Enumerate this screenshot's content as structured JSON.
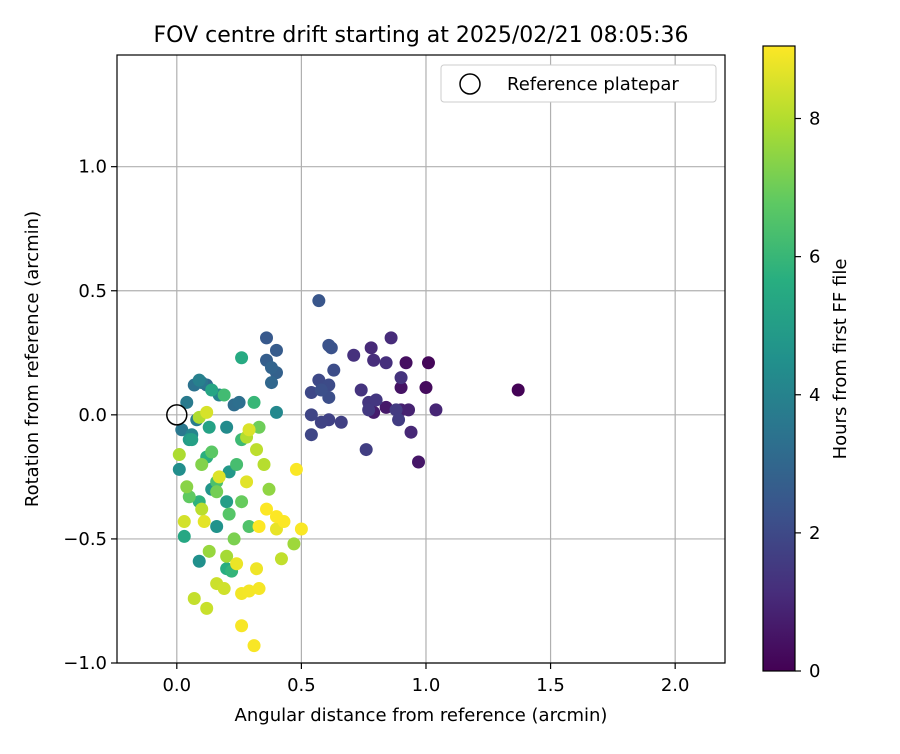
{
  "chart_data": {
    "type": "scatter",
    "title": "FOV centre drift starting at 2025/02/21 08:05:36",
    "xlabel": "Angular distance from reference (arcmin)",
    "ylabel": "Rotation from reference (arcmin)",
    "xlim": [
      -0.24,
      2.2
    ],
    "ylim": [
      -1.0,
      1.45
    ],
    "x_ticks": [
      0.0,
      0.5,
      1.0,
      1.5,
      2.0
    ],
    "x_tick_labels": [
      "0.0",
      "0.5",
      "1.0",
      "1.5",
      "2.0"
    ],
    "y_ticks": [
      -1.0,
      -0.5,
      0.0,
      0.5,
      1.0
    ],
    "y_tick_labels": [
      "−1.0",
      "−0.5",
      "0.0",
      "0.5",
      "1.0"
    ],
    "grid": true,
    "legend": {
      "position": "top-right",
      "entries": [
        "Reference platepar"
      ]
    },
    "reference_point": {
      "x": 0.0,
      "y": 0.0
    },
    "colorbar": {
      "label": "Hours from first FF file",
      "colormap": "viridis",
      "range": [
        0,
        9.05
      ],
      "ticks": [
        0,
        2,
        4,
        6,
        8
      ],
      "tick_labels": [
        "0",
        "2",
        "4",
        "6",
        "8"
      ]
    },
    "points": [
      {
        "x": 1.37,
        "y": 0.1,
        "t": 0.05
      },
      {
        "x": 1.01,
        "y": 0.21,
        "t": 0.15
      },
      {
        "x": 1.0,
        "y": 0.11,
        "t": 0.25
      },
      {
        "x": 0.92,
        "y": 0.21,
        "t": 0.35
      },
      {
        "x": 0.9,
        "y": 0.11,
        "t": 0.45
      },
      {
        "x": 0.97,
        "y": -0.19,
        "t": 0.55
      },
      {
        "x": 0.84,
        "y": 0.03,
        "t": 0.6
      },
      {
        "x": 0.79,
        "y": 0.01,
        "t": 0.7
      },
      {
        "x": 0.9,
        "y": 0.02,
        "t": 0.8
      },
      {
        "x": 0.93,
        "y": 0.02,
        "t": 0.85
      },
      {
        "x": 1.04,
        "y": 0.02,
        "t": 0.95
      },
      {
        "x": 0.94,
        "y": -0.07,
        "t": 1.0
      },
      {
        "x": 0.78,
        "y": 0.27,
        "t": 1.05
      },
      {
        "x": 0.86,
        "y": 0.31,
        "t": 1.1
      },
      {
        "x": 0.79,
        "y": 0.22,
        "t": 1.15
      },
      {
        "x": 0.84,
        "y": 0.21,
        "t": 1.2
      },
      {
        "x": 0.71,
        "y": 0.24,
        "t": 1.25
      },
      {
        "x": 0.9,
        "y": 0.15,
        "t": 1.3
      },
      {
        "x": 0.74,
        "y": 0.1,
        "t": 1.35
      },
      {
        "x": 0.77,
        "y": 0.05,
        "t": 1.4
      },
      {
        "x": 0.8,
        "y": 0.06,
        "t": 1.45
      },
      {
        "x": 0.77,
        "y": 0.02,
        "t": 1.5
      },
      {
        "x": 0.88,
        "y": 0.02,
        "t": 1.55
      },
      {
        "x": 0.89,
        "y": -0.02,
        "t": 1.6
      },
      {
        "x": 0.76,
        "y": -0.14,
        "t": 1.65
      },
      {
        "x": 0.66,
        "y": -0.03,
        "t": 1.7
      },
      {
        "x": 0.61,
        "y": -0.02,
        "t": 1.75
      },
      {
        "x": 0.58,
        "y": -0.03,
        "t": 1.8
      },
      {
        "x": 0.54,
        "y": 0.0,
        "t": 1.85
      },
      {
        "x": 0.54,
        "y": -0.08,
        "t": 1.9
      },
      {
        "x": 0.54,
        "y": 0.09,
        "t": 1.95
      },
      {
        "x": 0.57,
        "y": 0.14,
        "t": 2.0
      },
      {
        "x": 0.61,
        "y": 0.12,
        "t": 2.05
      },
      {
        "x": 0.63,
        "y": 0.18,
        "t": 2.1
      },
      {
        "x": 0.61,
        "y": 0.07,
        "t": 2.15
      },
      {
        "x": 0.58,
        "y": 0.1,
        "t": 2.2
      },
      {
        "x": 0.62,
        "y": 0.27,
        "t": 2.25
      },
      {
        "x": 0.61,
        "y": 0.28,
        "t": 2.3
      },
      {
        "x": 0.57,
        "y": 0.46,
        "t": 2.4
      },
      {
        "x": 0.36,
        "y": 0.31,
        "t": 2.5
      },
      {
        "x": 0.4,
        "y": 0.26,
        "t": 2.6
      },
      {
        "x": 0.36,
        "y": 0.22,
        "t": 2.7
      },
      {
        "x": 0.4,
        "y": 0.17,
        "t": 2.8
      },
      {
        "x": 0.38,
        "y": 0.19,
        "t": 2.9
      },
      {
        "x": 0.38,
        "y": 0.13,
        "t": 3.0
      },
      {
        "x": 0.12,
        "y": 0.12,
        "t": 3.1
      },
      {
        "x": 0.23,
        "y": 0.04,
        "t": 3.2
      },
      {
        "x": 0.25,
        "y": 0.05,
        "t": 3.3
      },
      {
        "x": 0.07,
        "y": 0.12,
        "t": 3.4
      },
      {
        "x": 0.1,
        "y": 0.13,
        "t": 3.5
      },
      {
        "x": 0.02,
        "y": -0.06,
        "t": 3.6
      },
      {
        "x": 0.04,
        "y": 0.05,
        "t": 3.7
      },
      {
        "x": 0.08,
        "y": -0.02,
        "t": 3.8
      },
      {
        "x": 0.09,
        "y": 0.14,
        "t": 3.9
      },
      {
        "x": 0.17,
        "y": 0.08,
        "t": 4.0
      },
      {
        "x": 0.06,
        "y": -0.08,
        "t": 4.1
      },
      {
        "x": 0.4,
        "y": 0.01,
        "t": 4.2
      },
      {
        "x": 0.2,
        "y": -0.05,
        "t": 4.3
      },
      {
        "x": 0.01,
        "y": -0.22,
        "t": 4.4
      },
      {
        "x": 0.09,
        "y": -0.59,
        "t": 4.5
      },
      {
        "x": 0.16,
        "y": -0.45,
        "t": 4.6
      },
      {
        "x": 0.14,
        "y": -0.3,
        "t": 4.7
      },
      {
        "x": 0.21,
        "y": -0.23,
        "t": 4.8
      },
      {
        "x": 0.05,
        "y": -0.1,
        "t": 4.9
      },
      {
        "x": 0.2,
        "y": -0.35,
        "t": 5.0
      },
      {
        "x": 0.06,
        "y": -0.1,
        "t": 5.1
      },
      {
        "x": 0.13,
        "y": -0.05,
        "t": 5.2
      },
      {
        "x": 0.14,
        "y": 0.1,
        "t": 5.3
      },
      {
        "x": 0.03,
        "y": -0.49,
        "t": 5.4
      },
      {
        "x": 0.26,
        "y": 0.23,
        "t": 5.5
      },
      {
        "x": 0.2,
        "y": -0.62,
        "t": 5.6
      },
      {
        "x": 0.12,
        "y": -0.17,
        "t": 5.7
      },
      {
        "x": 0.09,
        "y": -0.35,
        "t": 5.8
      },
      {
        "x": 0.22,
        "y": -0.63,
        "t": 5.9
      },
      {
        "x": 0.31,
        "y": 0.05,
        "t": 6.0
      },
      {
        "x": 0.26,
        "y": -0.1,
        "t": 6.1
      },
      {
        "x": 0.19,
        "y": 0.08,
        "t": 6.2
      },
      {
        "x": 0.24,
        "y": -0.2,
        "t": 6.3
      },
      {
        "x": 0.16,
        "y": -0.27,
        "t": 6.4
      },
      {
        "x": 0.29,
        "y": -0.45,
        "t": 6.5
      },
      {
        "x": 0.21,
        "y": -0.4,
        "t": 6.6
      },
      {
        "x": 0.14,
        "y": -0.15,
        "t": 6.7
      },
      {
        "x": 0.05,
        "y": -0.33,
        "t": 6.8
      },
      {
        "x": 0.26,
        "y": -0.35,
        "t": 6.9
      },
      {
        "x": 0.33,
        "y": -0.05,
        "t": 7.0
      },
      {
        "x": 0.16,
        "y": -0.31,
        "t": 7.1
      },
      {
        "x": 0.23,
        "y": -0.5,
        "t": 7.2
      },
      {
        "x": 0.1,
        "y": -0.2,
        "t": 7.3
      },
      {
        "x": 0.04,
        "y": -0.29,
        "t": 7.4
      },
      {
        "x": 0.37,
        "y": -0.3,
        "t": 7.5
      },
      {
        "x": 0.13,
        "y": -0.55,
        "t": 7.6
      },
      {
        "x": 0.47,
        "y": -0.52,
        "t": 7.7
      },
      {
        "x": 0.2,
        "y": -0.57,
        "t": 7.8
      },
      {
        "x": 0.01,
        "y": -0.16,
        "t": 7.9
      },
      {
        "x": 0.09,
        "y": -0.01,
        "t": 7.95
      },
      {
        "x": 0.28,
        "y": -0.09,
        "t": 8.0
      },
      {
        "x": 0.35,
        "y": -0.2,
        "t": 8.05
      },
      {
        "x": 0.1,
        "y": -0.38,
        "t": 8.1
      },
      {
        "x": 0.32,
        "y": -0.14,
        "t": 8.15
      },
      {
        "x": 0.42,
        "y": -0.58,
        "t": 8.2
      },
      {
        "x": 0.07,
        "y": -0.74,
        "t": 8.25
      },
      {
        "x": 0.12,
        "y": -0.78,
        "t": 8.3
      },
      {
        "x": 0.16,
        "y": -0.68,
        "t": 8.35
      },
      {
        "x": 0.19,
        "y": -0.7,
        "t": 8.4
      },
      {
        "x": 0.03,
        "y": -0.43,
        "t": 8.45
      },
      {
        "x": 0.12,
        "y": 0.01,
        "t": 8.5
      },
      {
        "x": 0.29,
        "y": -0.06,
        "t": 8.55
      },
      {
        "x": 0.17,
        "y": -0.25,
        "t": 8.6
      },
      {
        "x": 0.28,
        "y": -0.27,
        "t": 8.65
      },
      {
        "x": 0.11,
        "y": -0.43,
        "t": 8.7
      },
      {
        "x": 0.4,
        "y": -0.46,
        "t": 8.75
      },
      {
        "x": 0.24,
        "y": -0.6,
        "t": 8.8
      },
      {
        "x": 0.32,
        "y": -0.62,
        "t": 8.85
      },
      {
        "x": 0.26,
        "y": -0.72,
        "t": 8.9
      },
      {
        "x": 0.29,
        "y": -0.71,
        "t": 8.92
      },
      {
        "x": 0.33,
        "y": -0.7,
        "t": 8.94
      },
      {
        "x": 0.26,
        "y": -0.85,
        "t": 8.96
      },
      {
        "x": 0.31,
        "y": -0.93,
        "t": 8.98
      },
      {
        "x": 0.5,
        "y": -0.46,
        "t": 9.0
      },
      {
        "x": 0.48,
        "y": -0.22,
        "t": 9.01
      },
      {
        "x": 0.43,
        "y": -0.43,
        "t": 9.02
      },
      {
        "x": 0.4,
        "y": -0.41,
        "t": 9.03
      },
      {
        "x": 0.36,
        "y": -0.38,
        "t": 9.04
      },
      {
        "x": 0.33,
        "y": -0.45,
        "t": 9.05
      }
    ]
  }
}
